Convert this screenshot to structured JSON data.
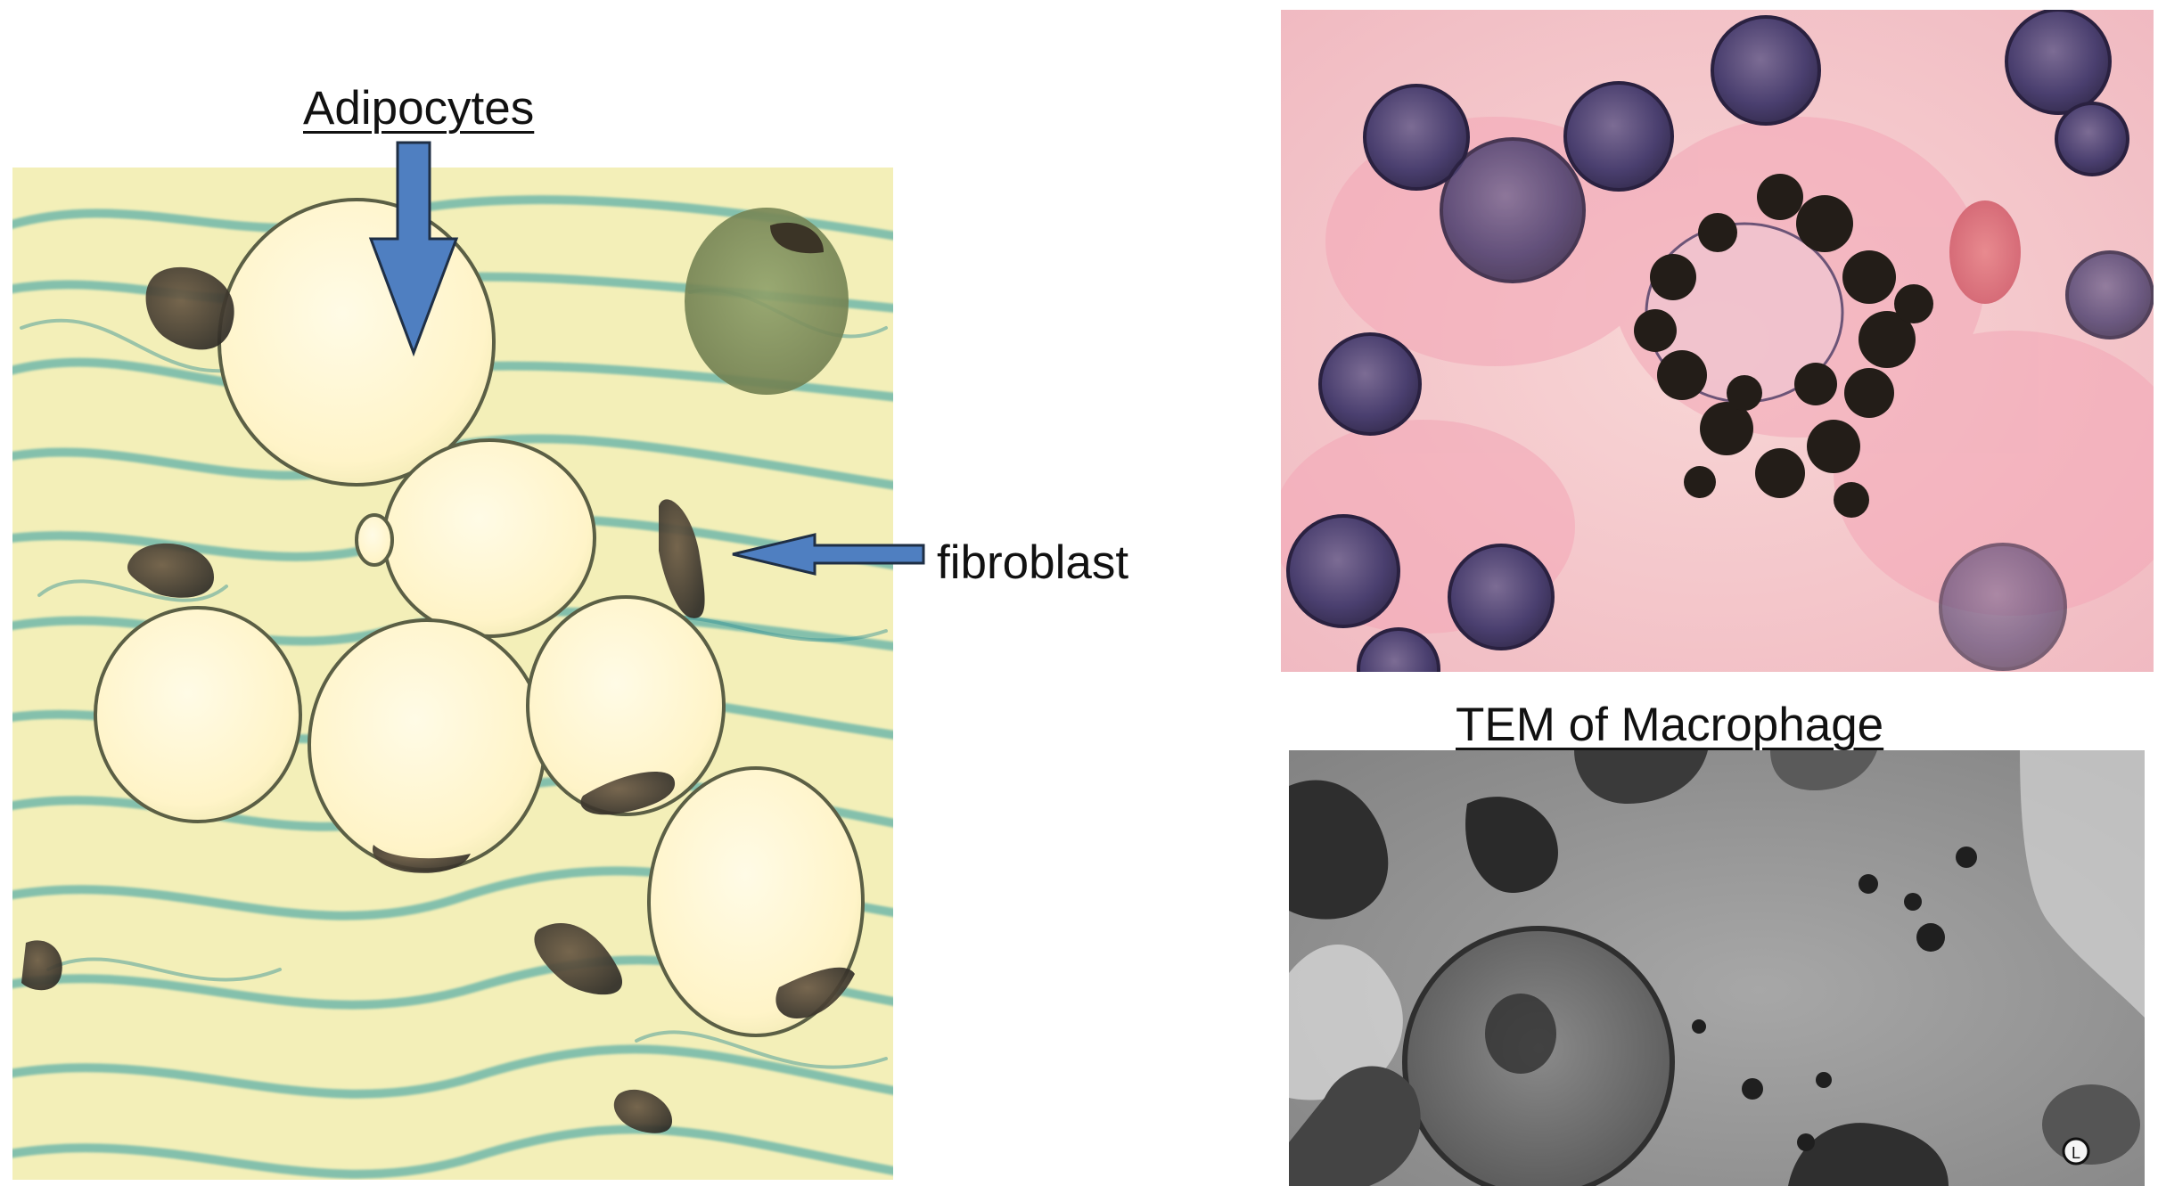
{
  "labels": {
    "adipocytes": "Adipocytes",
    "fibroblast": "fibroblast",
    "tem_title": "TEM of Macrophage"
  },
  "panels": {
    "left": {
      "description": "adipose tissue micrograph"
    },
    "right_top": {
      "description": "macrophage with pigment granules light micrograph"
    },
    "right_bottom": {
      "description": "transmission electron micrograph of macrophage",
      "marker": "L"
    }
  },
  "colors": {
    "arrow_fill": "#4f7fc1",
    "arrow_stroke": "#1f2f45",
    "adipose_bg": "#f3efb8",
    "fiber": "#4aa7a6",
    "he_bg": "#f2c2c2",
    "nucleus": "#4a3f6f",
    "em_bg": "#9b9b9b"
  }
}
